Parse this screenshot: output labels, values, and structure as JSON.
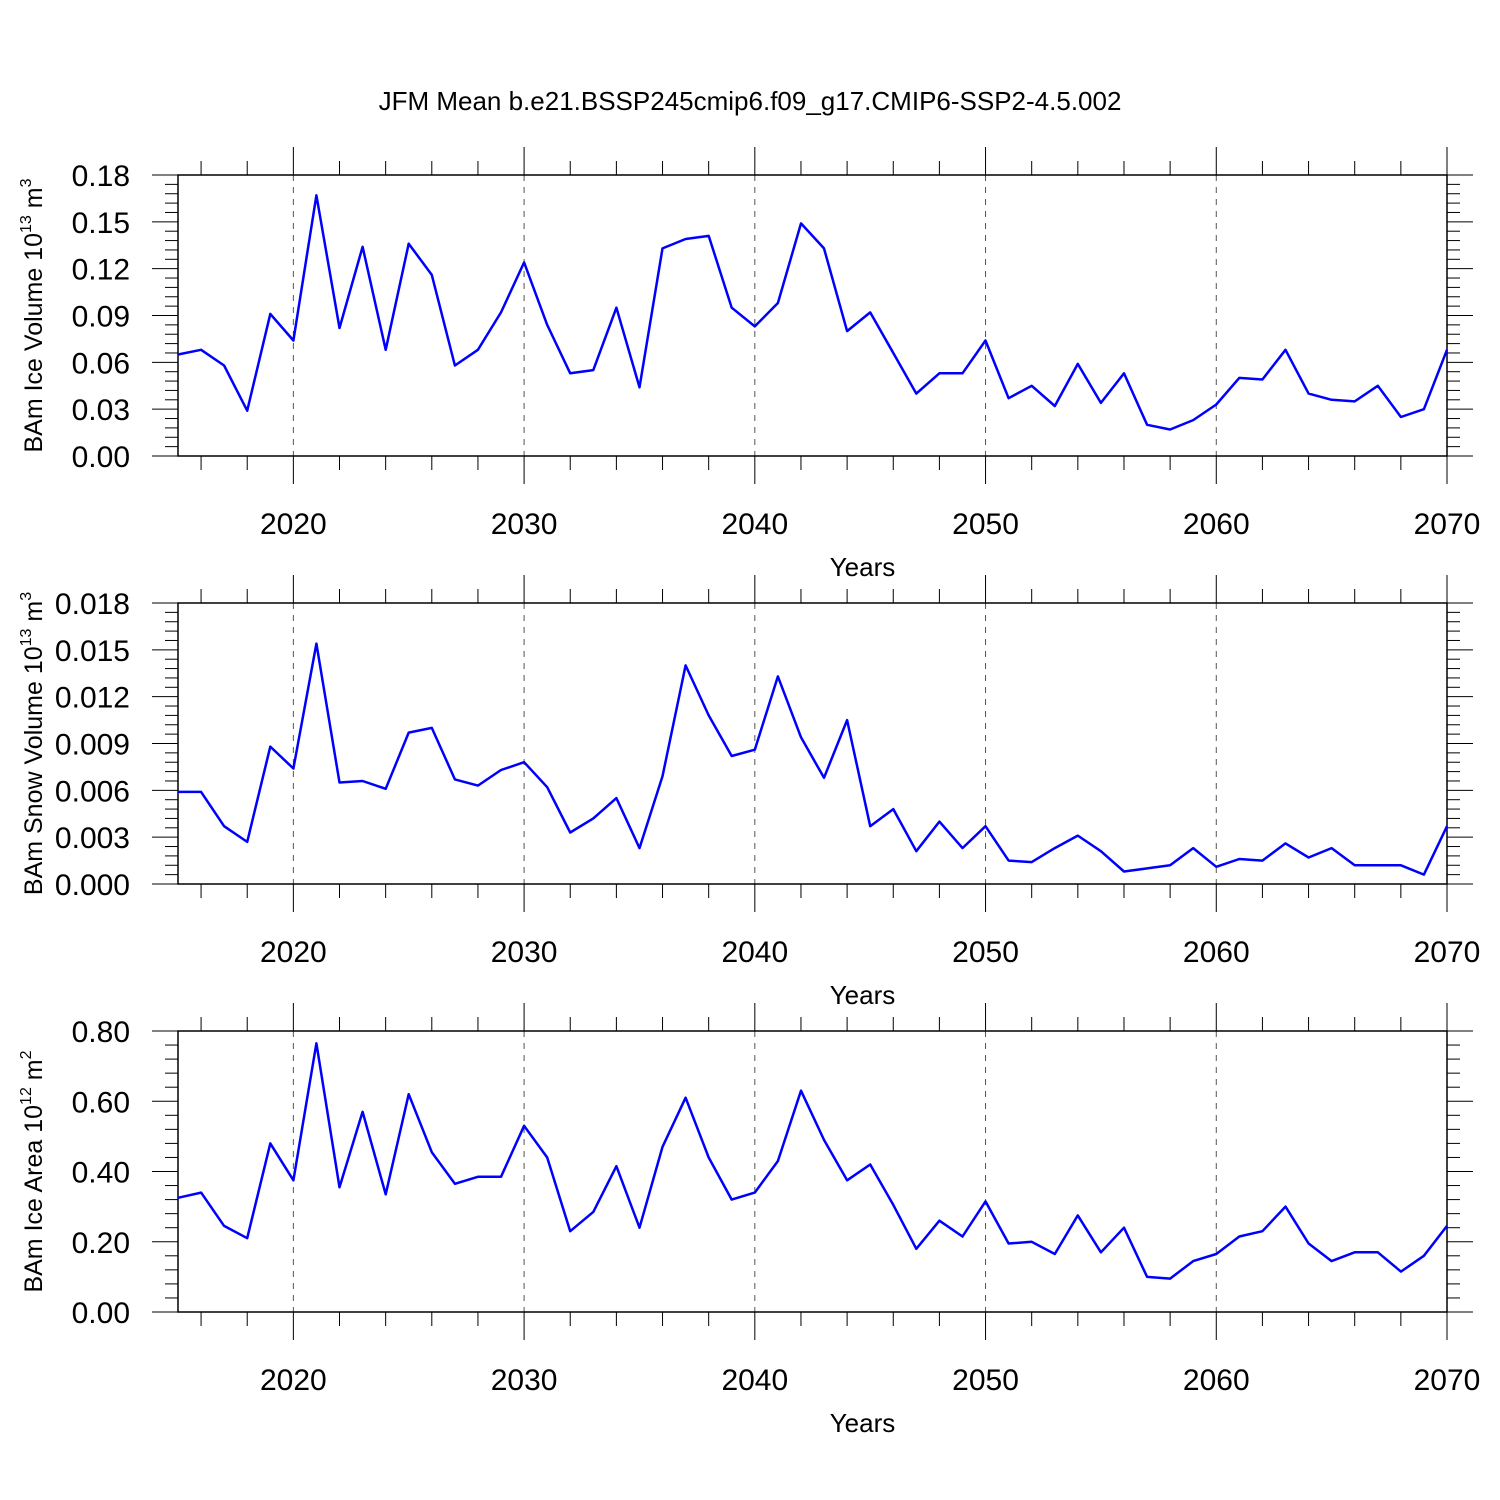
{
  "title": "JFM Mean b.e21.BSSP245cmip6.f09_g17.CMIP6-SSP2-4.5.002",
  "line_color": "#0000ff",
  "chart_data": [
    {
      "type": "line",
      "ylabel": "BAm Ice Volume 10",
      "ylabel_exp": "13",
      "ylabel_unit": " m",
      "ylabel_unit_exp": "3",
      "xlabel": "Years",
      "xlim": [
        2015,
        2070
      ],
      "ylim": [
        0,
        0.18
      ],
      "yticks": [
        0.0,
        0.03,
        0.06,
        0.09,
        0.12,
        0.15,
        0.18
      ],
      "ytick_labels": [
        "0.00",
        "0.03",
        "0.06",
        "0.09",
        "0.12",
        "0.15",
        "0.18"
      ],
      "xticks": [
        2020,
        2030,
        2040,
        2050,
        2060,
        2070
      ],
      "xtick_labels": [
        "2020",
        "2030",
        "2040",
        "2050",
        "2060",
        "2070"
      ],
      "grid": "dashed vertical at decades",
      "x": [
        2015,
        2016,
        2017,
        2018,
        2019,
        2020,
        2021,
        2022,
        2023,
        2024,
        2025,
        2026,
        2027,
        2028,
        2029,
        2030,
        2031,
        2032,
        2033,
        2034,
        2035,
        2036,
        2037,
        2038,
        2039,
        2040,
        2041,
        2042,
        2043,
        2044,
        2045,
        2046,
        2047,
        2048,
        2049,
        2050,
        2051,
        2052,
        2053,
        2054,
        2055,
        2056,
        2057,
        2058,
        2059,
        2060,
        2061,
        2062,
        2063,
        2064,
        2065,
        2066,
        2067,
        2068,
        2069,
        2070
      ],
      "series": [
        {
          "values": [
            0.065,
            0.068,
            0.058,
            0.029,
            0.091,
            0.074,
            0.167,
            0.082,
            0.134,
            0.068,
            0.136,
            0.116,
            0.058,
            0.068,
            0.092,
            0.124,
            0.084,
            0.053,
            0.055,
            0.095,
            0.044,
            0.133,
            0.139,
            0.141,
            0.095,
            0.083,
            0.098,
            0.149,
            0.133,
            0.08,
            0.092,
            0.066,
            0.04,
            0.053,
            0.053,
            0.074,
            0.037,
            0.045,
            0.032,
            0.059,
            0.034,
            0.053,
            0.02,
            0.017,
            0.023,
            0.033,
            0.05,
            0.049,
            0.068,
            0.04,
            0.036,
            0.035,
            0.045,
            0.025,
            0.03,
            0.068
          ]
        }
      ]
    },
    {
      "type": "line",
      "ylabel": "BAm Snow Volume 10",
      "ylabel_exp": "13",
      "ylabel_unit": " m",
      "ylabel_unit_exp": "3",
      "xlabel": "Years",
      "xlim": [
        2015,
        2070
      ],
      "ylim": [
        0,
        0.018
      ],
      "yticks": [
        0.0,
        0.003,
        0.006,
        0.009,
        0.012,
        0.015,
        0.018
      ],
      "ytick_labels": [
        "0.000",
        "0.003",
        "0.006",
        "0.009",
        "0.012",
        "0.015",
        "0.018"
      ],
      "xticks": [
        2020,
        2030,
        2040,
        2050,
        2060,
        2070
      ],
      "xtick_labels": [
        "2020",
        "2030",
        "2040",
        "2050",
        "2060",
        "2070"
      ],
      "grid": "dashed vertical at decades",
      "x": [
        2015,
        2016,
        2017,
        2018,
        2019,
        2020,
        2021,
        2022,
        2023,
        2024,
        2025,
        2026,
        2027,
        2028,
        2029,
        2030,
        2031,
        2032,
        2033,
        2034,
        2035,
        2036,
        2037,
        2038,
        2039,
        2040,
        2041,
        2042,
        2043,
        2044,
        2045,
        2046,
        2047,
        2048,
        2049,
        2050,
        2051,
        2052,
        2053,
        2054,
        2055,
        2056,
        2057,
        2058,
        2059,
        2060,
        2061,
        2062,
        2063,
        2064,
        2065,
        2066,
        2067,
        2068,
        2069,
        2070
      ],
      "series": [
        {
          "values": [
            0.0059,
            0.0059,
            0.0037,
            0.0027,
            0.0088,
            0.0074,
            0.0154,
            0.0065,
            0.0066,
            0.0061,
            0.0097,
            0.01,
            0.0067,
            0.0063,
            0.0073,
            0.0078,
            0.0062,
            0.0033,
            0.0042,
            0.0055,
            0.0023,
            0.0069,
            0.014,
            0.0108,
            0.0082,
            0.0086,
            0.0133,
            0.0094,
            0.0068,
            0.0105,
            0.0037,
            0.0048,
            0.0021,
            0.004,
            0.0023,
            0.0037,
            0.0015,
            0.0014,
            0.0023,
            0.0031,
            0.0021,
            0.0008,
            0.001,
            0.0012,
            0.0023,
            0.0011,
            0.0016,
            0.0015,
            0.0026,
            0.0017,
            0.0023,
            0.0012,
            0.0012,
            0.0012,
            0.0006,
            0.0037
          ]
        }
      ]
    },
    {
      "type": "line",
      "ylabel": "BAm Ice Area 10",
      "ylabel_exp": "12",
      "ylabel_unit": " m",
      "ylabel_unit_exp": "2",
      "xlabel": "Years",
      "xlim": [
        2015,
        2070
      ],
      "ylim": [
        0,
        0.8
      ],
      "yticks": [
        0.0,
        0.2,
        0.4,
        0.6,
        0.8
      ],
      "ytick_labels": [
        "0.00",
        "0.20",
        "0.40",
        "0.60",
        "0.80"
      ],
      "xticks": [
        2020,
        2030,
        2040,
        2050,
        2060,
        2070
      ],
      "xtick_labels": [
        "2020",
        "2030",
        "2040",
        "2050",
        "2060",
        "2070"
      ],
      "grid": "dashed vertical at decades",
      "x": [
        2015,
        2016,
        2017,
        2018,
        2019,
        2020,
        2021,
        2022,
        2023,
        2024,
        2025,
        2026,
        2027,
        2028,
        2029,
        2030,
        2031,
        2032,
        2033,
        2034,
        2035,
        2036,
        2037,
        2038,
        2039,
        2040,
        2041,
        2042,
        2043,
        2044,
        2045,
        2046,
        2047,
        2048,
        2049,
        2050,
        2051,
        2052,
        2053,
        2054,
        2055,
        2056,
        2057,
        2058,
        2059,
        2060,
        2061,
        2062,
        2063,
        2064,
        2065,
        2066,
        2067,
        2068,
        2069,
        2070
      ],
      "series": [
        {
          "values": [
            0.325,
            0.34,
            0.245,
            0.21,
            0.48,
            0.375,
            0.765,
            0.355,
            0.57,
            0.335,
            0.62,
            0.455,
            0.365,
            0.385,
            0.385,
            0.53,
            0.44,
            0.23,
            0.285,
            0.415,
            0.24,
            0.47,
            0.61,
            0.44,
            0.32,
            0.34,
            0.43,
            0.63,
            0.49,
            0.375,
            0.42,
            0.305,
            0.18,
            0.26,
            0.215,
            0.315,
            0.195,
            0.2,
            0.165,
            0.275,
            0.17,
            0.24,
            0.1,
            0.095,
            0.145,
            0.165,
            0.215,
            0.23,
            0.3,
            0.195,
            0.145,
            0.17,
            0.17,
            0.115,
            0.16,
            0.245
          ]
        }
      ]
    }
  ]
}
